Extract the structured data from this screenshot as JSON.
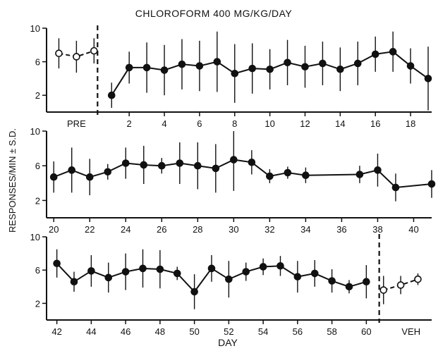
{
  "chart_data": {
    "type": "line",
    "title": "CHLOROFORM 400 MG/KG/DAY",
    "ylabel": "RESPONSES/MIN ± S.D.",
    "xlabel": "DAY",
    "ylim": [
      0,
      10
    ],
    "yticks": [
      2,
      6,
      10
    ],
    "grid": false,
    "colors": {
      "line": "#111111",
      "open_fill": "#ffffff",
      "closed_fill": "#111111"
    },
    "panels": [
      {
        "xlim": [
          -2.7,
          19.2
        ],
        "xticks": [
          2,
          4,
          6,
          8,
          10,
          12,
          14,
          16,
          18
        ],
        "group_label": {
          "text": "PRE",
          "x": -1
        },
        "dividers": [
          0.2
        ],
        "series": [
          {
            "marker": "open",
            "dashed": true,
            "x": [
              -2,
              -1,
              0
            ],
            "y": [
              7.0,
              6.6,
              7.3
            ],
            "sd": [
              1.8,
              1.9,
              1.5
            ]
          },
          {
            "marker": "closed",
            "dashed": false,
            "x": [
              1,
              2,
              3,
              4,
              5,
              6,
              7,
              8,
              9,
              10,
              11,
              12,
              13,
              14,
              15,
              16,
              17,
              18,
              19
            ],
            "y": [
              2.0,
              5.3,
              5.3,
              5.0,
              5.7,
              5.5,
              6.0,
              4.6,
              5.2,
              5.1,
              5.9,
              5.4,
              5.8,
              5.1,
              5.8,
              6.9,
              7.2,
              5.5,
              4.0
            ],
            "sd": [
              1.5,
              1.9,
              3.0,
              3.0,
              3.0,
              3.0,
              3.6,
              3.5,
              3.0,
              2.4,
              2.7,
              2.5,
              2.6,
              2.6,
              2.6,
              2.1,
              2.4,
              2.1,
              3.8
            ]
          }
        ]
      },
      {
        "xlim": [
          19.6,
          41.0
        ],
        "xticks": [
          20,
          22,
          24,
          26,
          28,
          30,
          32,
          34,
          36,
          38,
          40
        ],
        "dividers": [],
        "series": [
          {
            "marker": "closed",
            "dashed": false,
            "x": [
              20,
              21,
              22,
              23,
              24,
              25,
              26,
              27,
              28,
              29,
              30,
              31,
              32,
              33,
              34,
              37,
              38,
              39,
              41
            ],
            "y": [
              4.7,
              5.5,
              4.7,
              5.3,
              6.3,
              6.1,
              6.0,
              6.3,
              6.0,
              5.7,
              6.7,
              6.4,
              4.8,
              5.2,
              4.9,
              5.0,
              5.5,
              3.5,
              3.9
            ],
            "sd": [
              1.8,
              2.6,
              2.1,
              0.9,
              1.8,
              2.2,
              0.9,
              2.4,
              2.7,
              2.8,
              3.6,
              1.4,
              0.8,
              0.7,
              0.9,
              1.0,
              1.9,
              1.6,
              1.6
            ]
          }
        ]
      },
      {
        "xlim": [
          41.4,
          63.8
        ],
        "xticks": [
          42,
          44,
          46,
          48,
          50,
          52,
          54,
          56,
          58,
          60
        ],
        "group_label": {
          "text": "VEH",
          "x": 62.6
        },
        "dividers": [
          60.75
        ],
        "series": [
          {
            "marker": "closed",
            "dashed": false,
            "x": [
              42,
              43,
              44,
              45,
              46,
              47,
              48,
              49,
              50,
              51,
              52,
              53,
              54,
              55,
              56,
              57,
              58,
              59,
              60
            ],
            "y": [
              6.8,
              4.6,
              5.9,
              5.1,
              5.8,
              6.2,
              6.1,
              5.6,
              3.4,
              6.2,
              4.9,
              5.8,
              6.4,
              6.5,
              5.2,
              5.6,
              4.7,
              4.0,
              4.6
            ],
            "sd": [
              1.7,
              1.2,
              1.9,
              1.8,
              2.2,
              2.3,
              2.3,
              0.8,
              2.1,
              1.6,
              2.2,
              1.1,
              1.0,
              1.2,
              1.9,
              1.6,
              1.4,
              0.8,
              2.0
            ]
          },
          {
            "marker": "open",
            "dashed": true,
            "x": [
              61,
              62,
              63
            ],
            "y": [
              3.6,
              4.2,
              4.9
            ],
            "sd": [
              1.7,
              1.1,
              0.7
            ]
          }
        ]
      }
    ]
  }
}
